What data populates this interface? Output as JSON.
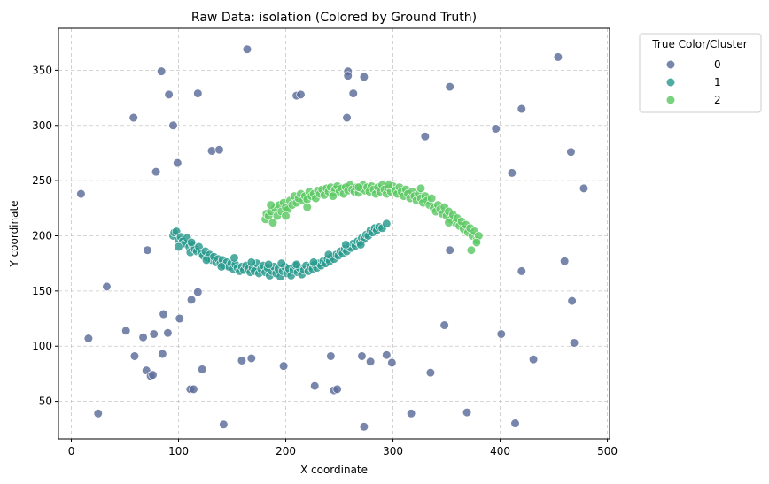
{
  "chart_data": {
    "type": "scatter",
    "title": "Raw Data: isolation (Colored by Ground Truth)",
    "xlabel": "X coordinate",
    "ylabel": "Y coordinate",
    "xlim": [
      -12,
      502
    ],
    "ylim": [
      16,
      388
    ],
    "xticks": [
      0,
      100,
      200,
      300,
      400,
      500
    ],
    "yticks": [
      50,
      100,
      150,
      200,
      250,
      300,
      350
    ],
    "grid": true,
    "legend": {
      "title": "True Color/Cluster",
      "placement": "outside-top-right",
      "entries": [
        "0",
        "1",
        "2"
      ]
    },
    "colors": [
      "#5b6b98",
      "#2a9a8e",
      "#5cc863"
    ],
    "series": [
      {
        "name": "0",
        "points": [
          [
            9,
            238
          ],
          [
            16,
            107
          ],
          [
            25,
            39
          ],
          [
            33,
            154
          ],
          [
            51,
            114
          ],
          [
            58,
            307
          ],
          [
            59,
            91
          ],
          [
            67,
            108
          ],
          [
            70,
            78
          ],
          [
            71,
            187
          ],
          [
            74,
            73
          ],
          [
            76,
            74
          ],
          [
            77,
            111
          ],
          [
            79,
            258
          ],
          [
            84,
            349
          ],
          [
            85,
            93
          ],
          [
            86,
            129
          ],
          [
            90,
            112
          ],
          [
            91,
            328
          ],
          [
            95,
            300
          ],
          [
            99,
            266
          ],
          [
            101,
            125
          ],
          [
            111,
            61
          ],
          [
            112,
            142
          ],
          [
            114,
            61
          ],
          [
            118,
            149
          ],
          [
            118,
            329
          ],
          [
            122,
            79
          ],
          [
            131,
            277
          ],
          [
            138,
            278
          ],
          [
            142,
            29
          ],
          [
            159,
            87
          ],
          [
            164,
            369
          ],
          [
            168,
            89
          ],
          [
            198,
            82
          ],
          [
            210,
            327
          ],
          [
            214,
            328
          ],
          [
            227,
            64
          ],
          [
            242,
            91
          ],
          [
            245,
            60
          ],
          [
            248,
            61
          ],
          [
            257,
            307
          ],
          [
            258,
            349
          ],
          [
            258,
            345
          ],
          [
            263,
            329
          ],
          [
            271,
            91
          ],
          [
            273,
            344
          ],
          [
            273,
            27
          ],
          [
            279,
            86
          ],
          [
            294,
            92
          ],
          [
            299,
            85
          ],
          [
            317,
            39
          ],
          [
            330,
            290
          ],
          [
            335,
            76
          ],
          [
            348,
            119
          ],
          [
            353,
            335
          ],
          [
            353,
            187
          ],
          [
            369,
            40
          ],
          [
            396,
            297
          ],
          [
            401,
            111
          ],
          [
            411,
            257
          ],
          [
            414,
            30
          ],
          [
            420,
            315
          ],
          [
            420,
            168
          ],
          [
            431,
            88
          ],
          [
            454,
            362
          ],
          [
            460,
            177
          ],
          [
            466,
            276
          ],
          [
            467,
            141
          ],
          [
            469,
            103
          ],
          [
            478,
            243
          ]
        ]
      },
      {
        "name": "1",
        "points": [
          [
            95,
            200
          ],
          [
            96,
            203
          ],
          [
            98,
            204
          ],
          [
            100,
            196
          ],
          [
            102,
            199
          ],
          [
            104,
            195
          ],
          [
            106,
            193
          ],
          [
            108,
            198
          ],
          [
            110,
            190
          ],
          [
            111,
            185
          ],
          [
            113,
            192
          ],
          [
            115,
            188
          ],
          [
            117,
            186
          ],
          [
            119,
            190
          ],
          [
            121,
            184
          ],
          [
            123,
            182
          ],
          [
            125,
            186
          ],
          [
            127,
            180
          ],
          [
            129,
            183
          ],
          [
            131,
            178
          ],
          [
            133,
            181
          ],
          [
            135,
            176
          ],
          [
            137,
            179
          ],
          [
            139,
            175
          ],
          [
            141,
            178
          ],
          [
            143,
            173
          ],
          [
            145,
            176
          ],
          [
            147,
            172
          ],
          [
            149,
            175
          ],
          [
            151,
            170
          ],
          [
            153,
            174
          ],
          [
            155,
            171
          ],
          [
            157,
            168
          ],
          [
            159,
            172
          ],
          [
            161,
            169
          ],
          [
            163,
            173
          ],
          [
            165,
            170
          ],
          [
            167,
            167
          ],
          [
            169,
            171
          ],
          [
            171,
            168
          ],
          [
            173,
            175
          ],
          [
            175,
            166
          ],
          [
            177,
            170
          ],
          [
            179,
            173
          ],
          [
            181,
            167
          ],
          [
            183,
            171
          ],
          [
            185,
            164
          ],
          [
            187,
            168
          ],
          [
            189,
            172
          ],
          [
            191,
            166
          ],
          [
            193,
            170
          ],
          [
            195,
            163
          ],
          [
            197,
            168
          ],
          [
            199,
            172
          ],
          [
            201,
            166
          ],
          [
            203,
            170
          ],
          [
            205,
            164
          ],
          [
            207,
            169
          ],
          [
            209,
            173
          ],
          [
            211,
            167
          ],
          [
            213,
            171
          ],
          [
            215,
            165
          ],
          [
            217,
            169
          ],
          [
            219,
            173
          ],
          [
            221,
            168
          ],
          [
            223,
            172
          ],
          [
            225,
            170
          ],
          [
            227,
            174
          ],
          [
            229,
            171
          ],
          [
            231,
            175
          ],
          [
            233,
            173
          ],
          [
            235,
            177
          ],
          [
            237,
            175
          ],
          [
            239,
            179
          ],
          [
            241,
            177
          ],
          [
            243,
            181
          ],
          [
            245,
            179
          ],
          [
            247,
            183
          ],
          [
            249,
            182
          ],
          [
            251,
            186
          ],
          [
            253,
            184
          ],
          [
            255,
            188
          ],
          [
            257,
            186
          ],
          [
            259,
            190
          ],
          [
            261,
            189
          ],
          [
            263,
            193
          ],
          [
            265,
            191
          ],
          [
            267,
            195
          ],
          [
            269,
            194
          ],
          [
            271,
            198
          ],
          [
            273,
            197
          ],
          [
            275,
            201
          ],
          [
            277,
            200
          ],
          [
            279,
            205
          ],
          [
            281,
            203
          ],
          [
            283,
            207
          ],
          [
            285,
            205
          ],
          [
            287,
            208
          ],
          [
            290,
            207
          ],
          [
            294,
            211
          ],
          [
            100,
            190
          ],
          [
            112,
            194
          ],
          [
            126,
            178
          ],
          [
            140,
            172
          ],
          [
            152,
            180
          ],
          [
            168,
            176
          ],
          [
            184,
            174
          ],
          [
            196,
            175
          ],
          [
            210,
            174
          ],
          [
            226,
            176
          ],
          [
            240,
            183
          ],
          [
            256,
            192
          ],
          [
            270,
            192
          ]
        ]
      },
      {
        "name": "2",
        "points": [
          [
            181,
            215
          ],
          [
            182,
            220
          ],
          [
            184,
            218
          ],
          [
            186,
            222
          ],
          [
            188,
            212
          ],
          [
            190,
            225
          ],
          [
            192,
            218
          ],
          [
            194,
            228
          ],
          [
            196,
            222
          ],
          [
            198,
            230
          ],
          [
            200,
            226
          ],
          [
            202,
            224
          ],
          [
            204,
            232
          ],
          [
            206,
            228
          ],
          [
            208,
            236
          ],
          [
            210,
            230
          ],
          [
            212,
            234
          ],
          [
            214,
            238
          ],
          [
            216,
            232
          ],
          [
            218,
            236
          ],
          [
            220,
            233
          ],
          [
            222,
            240
          ],
          [
            224,
            236
          ],
          [
            226,
            238
          ],
          [
            228,
            234
          ],
          [
            230,
            241
          ],
          [
            232,
            238
          ],
          [
            234,
            242
          ],
          [
            236,
            237
          ],
          [
            238,
            243
          ],
          [
            240,
            240
          ],
          [
            242,
            244
          ],
          [
            244,
            239
          ],
          [
            246,
            242
          ],
          [
            248,
            245
          ],
          [
            250,
            240
          ],
          [
            252,
            243
          ],
          [
            254,
            238
          ],
          [
            256,
            244
          ],
          [
            258,
            241
          ],
          [
            260,
            246
          ],
          [
            262,
            242
          ],
          [
            264,
            240
          ],
          [
            266,
            244
          ],
          [
            268,
            239
          ],
          [
            270,
            243
          ],
          [
            272,
            246
          ],
          [
            274,
            241
          ],
          [
            276,
            244
          ],
          [
            278,
            240
          ],
          [
            280,
            245
          ],
          [
            282,
            242
          ],
          [
            284,
            238
          ],
          [
            286,
            244
          ],
          [
            288,
            240
          ],
          [
            290,
            246
          ],
          [
            292,
            242
          ],
          [
            294,
            238
          ],
          [
            296,
            243
          ],
          [
            298,
            240
          ],
          [
            300,
            245
          ],
          [
            302,
            241
          ],
          [
            304,
            238
          ],
          [
            306,
            244
          ],
          [
            308,
            240
          ],
          [
            310,
            236
          ],
          [
            312,
            242
          ],
          [
            314,
            238
          ],
          [
            316,
            234
          ],
          [
            318,
            240
          ],
          [
            320,
            236
          ],
          [
            322,
            232
          ],
          [
            324,
            238
          ],
          [
            326,
            234
          ],
          [
            328,
            230
          ],
          [
            330,
            236
          ],
          [
            332,
            232
          ],
          [
            334,
            228
          ],
          [
            336,
            234
          ],
          [
            338,
            225
          ],
          [
            340,
            222
          ],
          [
            342,
            228
          ],
          [
            344,
            224
          ],
          [
            346,
            220
          ],
          [
            348,
            226
          ],
          [
            350,
            218
          ],
          [
            352,
            222
          ],
          [
            354,
            215
          ],
          [
            356,
            219
          ],
          [
            358,
            212
          ],
          [
            360,
            216
          ],
          [
            362,
            209
          ],
          [
            364,
            213
          ],
          [
            366,
            206
          ],
          [
            368,
            210
          ],
          [
            370,
            203
          ],
          [
            372,
            207
          ],
          [
            374,
            200
          ],
          [
            376,
            204
          ],
          [
            378,
            196
          ],
          [
            380,
            200
          ],
          [
            378,
            194
          ],
          [
            373,
            187
          ],
          [
            186,
            228
          ],
          [
            200,
            218
          ],
          [
            220,
            226
          ],
          [
            244,
            236
          ],
          [
            268,
            244
          ],
          [
            296,
            246
          ],
          [
            326,
            243
          ],
          [
            352,
            212
          ]
        ]
      }
    ]
  }
}
